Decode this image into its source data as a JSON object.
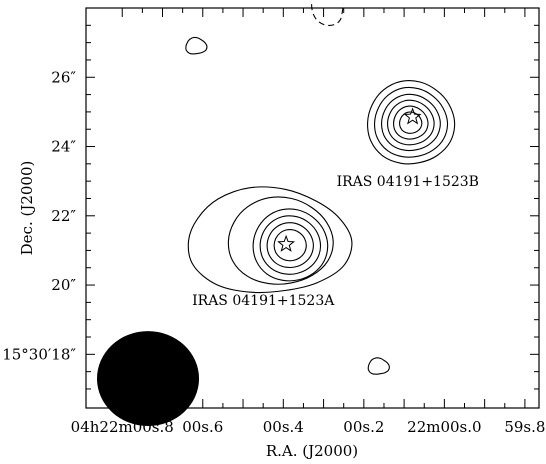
{
  "chart_data": {
    "type": "contour",
    "title": "",
    "xlabel": "R.A. (J2000)",
    "ylabel": "Dec. (J2000)",
    "x_ticks": [
      {
        "label": "04h22m00s.8",
        "ra_s": 0.8
      },
      {
        "label": "00s.6",
        "ra_s": 0.6
      },
      {
        "label": "00s.4",
        "ra_s": 0.4
      },
      {
        "label": "00s.2",
        "ra_s": 0.2
      },
      {
        "label": "22m00s.0",
        "ra_s": 0.0
      },
      {
        "label": "59s.8",
        "ra_s": -0.2
      }
    ],
    "y_ticks": [
      {
        "label": "15°30′18″",
        "dec_arcsec": 18
      },
      {
        "label": "20″",
        "dec_arcsec": 20
      },
      {
        "label": "22″",
        "dec_arcsec": 22
      },
      {
        "label": "24″",
        "dec_arcsec": 24
      },
      {
        "label": "26″",
        "dec_arcsec": 26
      }
    ],
    "xlim": [
      0.89,
      -0.235
    ],
    "ylim": [
      16.45,
      28.0
    ],
    "sources": [
      {
        "name": "IRAS 04191+1523A",
        "ra_s": 0.393,
        "dec_arcsec": 21.15,
        "contour_levels": 6
      },
      {
        "name": "IRAS 04191+1523B",
        "ra_s": 0.079,
        "dec_arcsec": 24.8,
        "contour_levels": 6
      }
    ],
    "beam": {
      "ra_s": 0.736,
      "dec_arcsec": 17.3,
      "major_arcsec": 1.9,
      "minor_arcsec": 1.37,
      "pa_deg": 90
    },
    "extra_contours": [
      {
        "kind": "positive",
        "ra_s": 0.617,
        "dec_arcsec": 26.9
      },
      {
        "kind": "positive",
        "ra_s": 0.164,
        "dec_arcsec": 17.65
      },
      {
        "kind": "negative",
        "ra_s": 0.295,
        "dec_arcsec": 27.65
      }
    ],
    "grid": false
  }
}
